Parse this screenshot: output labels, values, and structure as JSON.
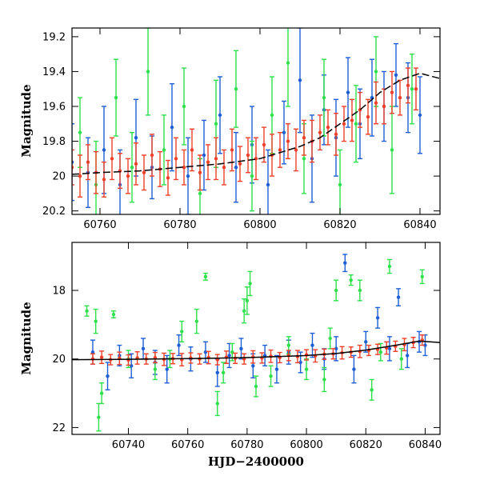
{
  "chart_data": [
    {
      "type": "scatter",
      "xlabel": "",
      "ylabel": "Magnitude",
      "xlim": [
        60753,
        60845
      ],
      "ylim": [
        20.22,
        19.15
      ],
      "y_inverted": true,
      "xticks": [
        60760,
        60780,
        60800,
        60820,
        60840
      ],
      "yticks": [
        19.2,
        19.4,
        19.6,
        19.8,
        20,
        20.2
      ],
      "grid": false,
      "legend": "none",
      "series": [
        {
          "color": "#1f5fd6",
          "x": [
            60753,
            60757,
            60761,
            60765,
            60769,
            60773,
            60778,
            60782,
            60786,
            60790,
            60794,
            60798,
            60802,
            60806,
            60810,
            60813,
            60816,
            60819,
            60822,
            60825,
            60828,
            60831,
            60834,
            60837,
            60840
          ],
          "y": [
            19.92,
            19.98,
            19.85,
            20.05,
            19.78,
            19.95,
            19.72,
            20.0,
            19.88,
            19.65,
            19.95,
            19.82,
            20.05,
            19.75,
            19.45,
            19.9,
            19.62,
            19.78,
            19.52,
            19.7,
            19.55,
            19.6,
            19.42,
            19.55,
            19.65
          ],
          "yerr": [
            0.22,
            0.2,
            0.25,
            0.2,
            0.22,
            0.18,
            0.25,
            0.22,
            0.2,
            0.22,
            0.2,
            0.22,
            0.2,
            0.18,
            0.3,
            0.25,
            0.2,
            0.22,
            0.2,
            0.2,
            0.22,
            0.2,
            0.18,
            0.2,
            0.22
          ]
        },
        {
          "color": "#2ee04a",
          "x": [
            60755,
            60759,
            60764,
            60768,
            60772,
            60776,
            60781,
            60785,
            60789,
            60794,
            60798,
            60803,
            60807,
            60811,
            60816,
            60820,
            60824,
            60829,
            60833,
            60838
          ],
          "y": [
            19.75,
            20.05,
            19.55,
            19.95,
            19.4,
            19.85,
            19.6,
            20.1,
            19.7,
            19.5,
            20.0,
            19.65,
            19.35,
            19.9,
            19.55,
            20.05,
            19.7,
            19.4,
            19.85,
            19.5
          ],
          "yerr": [
            0.2,
            0.25,
            0.22,
            0.2,
            0.25,
            0.2,
            0.22,
            0.2,
            0.25,
            0.22,
            0.2,
            0.22,
            0.25,
            0.2,
            0.22,
            0.2,
            0.22,
            0.2,
            0.25,
            0.2
          ]
        },
        {
          "color": "#f0402a",
          "x": [
            60753,
            60755,
            60757,
            60759,
            60761,
            60763,
            60765,
            60767,
            60769,
            60771,
            60773,
            60775,
            60777,
            60779,
            60781,
            60783,
            60785,
            60787,
            60789,
            60791,
            60793,
            60795,
            60797,
            60799,
            60801,
            60803,
            60805,
            60807,
            60809,
            60811,
            60813,
            60815,
            60817,
            60819,
            60821,
            60823,
            60825,
            60827,
            60829,
            60831,
            60833,
            60835,
            60837,
            60839
          ],
          "y": [
            19.95,
            20.0,
            19.92,
            19.98,
            20.02,
            19.9,
            19.97,
            20.0,
            19.93,
            19.98,
            19.88,
            19.96,
            20.01,
            19.9,
            19.95,
            19.85,
            19.98,
            19.92,
            19.9,
            19.95,
            19.85,
            19.93,
            19.88,
            19.9,
            19.82,
            19.88,
            19.85,
            19.8,
            19.85,
            19.78,
            19.8,
            19.75,
            19.72,
            19.76,
            19.7,
            19.68,
            19.62,
            19.66,
            19.58,
            19.6,
            19.52,
            19.55,
            19.48,
            19.5
          ],
          "yerr": [
            0.1,
            0.12,
            0.1,
            0.12,
            0.1,
            0.12,
            0.1,
            0.1,
            0.12,
            0.1,
            0.12,
            0.1,
            0.1,
            0.12,
            0.1,
            0.12,
            0.1,
            0.1,
            0.12,
            0.1,
            0.12,
            0.1,
            0.1,
            0.12,
            0.1,
            0.12,
            0.1,
            0.1,
            0.12,
            0.1,
            0.12,
            0.1,
            0.1,
            0.12,
            0.1,
            0.12,
            0.1,
            0.1,
            0.12,
            0.1,
            0.12,
            0.1,
            0.1,
            0.12
          ]
        }
      ],
      "model_curve": {
        "color": "#000000",
        "style": "dashed",
        "x": [
          60753,
          60760,
          60770,
          60780,
          60790,
          60800,
          60810,
          60815,
          60820,
          60825,
          60830,
          60835,
          60840,
          60845
        ],
        "y": [
          19.99,
          19.98,
          19.97,
          19.95,
          19.93,
          19.9,
          19.83,
          19.78,
          19.7,
          19.62,
          19.52,
          19.45,
          19.41,
          19.44
        ]
      }
    },
    {
      "type": "scatter",
      "xlabel": "HJD−2400000",
      "ylabel": "Magnitude",
      "xlim": [
        60721,
        60845
      ],
      "ylim": [
        22.2,
        16.6
      ],
      "y_inverted": true,
      "xticks": [
        60740,
        60760,
        60780,
        60800,
        60820,
        60840
      ],
      "yticks": [
        18,
        20,
        22
      ],
      "grid": false,
      "legend": "none",
      "series": [
        {
          "color": "#1f5fd6",
          "x": [
            60728,
            60733,
            60737,
            60741,
            60745,
            60749,
            60753,
            60757,
            60761,
            60766,
            60770,
            60774,
            60778,
            60782,
            60786,
            60790,
            60794,
            60798,
            60802,
            60806,
            60810,
            60813,
            60816,
            60820,
            60824,
            60828,
            60831,
            60834,
            60838,
            60840
          ],
          "y": [
            19.8,
            20.5,
            19.9,
            20.2,
            19.7,
            20.1,
            20.3,
            19.6,
            20.0,
            19.8,
            20.4,
            19.9,
            19.7,
            20.2,
            19.9,
            20.3,
            19.8,
            20.1,
            19.6,
            20.0,
            19.7,
            17.2,
            20.3,
            19.5,
            18.8,
            19.7,
            18.2,
            19.9,
            19.5,
            19.6
          ],
          "yerr": [
            0.35,
            0.4,
            0.3,
            0.35,
            0.3,
            0.35,
            0.4,
            0.3,
            0.35,
            0.3,
            0.4,
            0.35,
            0.3,
            0.35,
            0.3,
            0.4,
            0.35,
            0.3,
            0.35,
            0.3,
            0.35,
            0.25,
            0.4,
            0.3,
            0.3,
            0.35,
            0.25,
            0.35,
            0.3,
            0.3
          ]
        },
        {
          "color": "#2ee04a",
          "x": [
            60726,
            60729,
            60730,
            60731,
            60735,
            60740,
            60749,
            60754,
            60758,
            60763,
            60766,
            60770,
            60772,
            60775,
            60779,
            60780,
            60781,
            60783,
            60788,
            60794,
            60800,
            60806,
            60808,
            60810,
            60815,
            60818,
            60822,
            60825,
            60828,
            60832,
            60839
          ],
          "y": [
            18.6,
            18.9,
            21.7,
            21.0,
            18.7,
            20.0,
            20.3,
            20.0,
            19.2,
            18.9,
            17.6,
            21.3,
            20.4,
            19.8,
            18.6,
            18.3,
            17.8,
            20.8,
            20.5,
            19.6,
            20.3,
            20.6,
            19.4,
            18.0,
            17.7,
            18.0,
            20.9,
            19.8,
            17.3,
            20.0,
            17.6
          ],
          "yerr": [
            0.15,
            0.35,
            0.4,
            0.3,
            0.1,
            0.25,
            0.3,
            0.25,
            0.3,
            0.35,
            0.1,
            0.35,
            0.3,
            0.25,
            0.35,
            0.4,
            0.35,
            0.3,
            0.3,
            0.25,
            0.3,
            0.35,
            0.3,
            0.3,
            0.15,
            0.3,
            0.3,
            0.25,
            0.2,
            0.3,
            0.2
          ]
        },
        {
          "color": "#f0402a",
          "x": [
            60728,
            60731,
            60734,
            60737,
            60740,
            60743,
            60746,
            60749,
            60752,
            60755,
            60758,
            60761,
            60764,
            60767,
            60770,
            60773,
            60776,
            60779,
            60782,
            60785,
            60788,
            60791,
            60794,
            60797,
            60800,
            60803,
            60806,
            60809,
            60812,
            60815,
            60818,
            60821,
            60824,
            60827,
            60830,
            60833,
            60836,
            60839
          ],
          "y": [
            20.0,
            19.95,
            20.02,
            19.98,
            20.03,
            19.97,
            20.0,
            19.96,
            20.01,
            19.99,
            20.02,
            19.97,
            20.0,
            19.96,
            20.02,
            19.95,
            19.98,
            20.0,
            19.94,
            19.97,
            19.92,
            19.96,
            19.9,
            19.93,
            19.88,
            19.91,
            19.86,
            19.85,
            19.82,
            19.8,
            19.78,
            19.75,
            19.72,
            19.68,
            19.63,
            19.58,
            19.52,
            19.45
          ],
          "yerr": [
            0.15,
            0.18,
            0.15,
            0.18,
            0.15,
            0.18,
            0.15,
            0.15,
            0.18,
            0.15,
            0.18,
            0.15,
            0.15,
            0.18,
            0.15,
            0.18,
            0.15,
            0.15,
            0.18,
            0.15,
            0.18,
            0.15,
            0.15,
            0.18,
            0.15,
            0.18,
            0.15,
            0.15,
            0.18,
            0.15,
            0.18,
            0.15,
            0.15,
            0.18,
            0.15,
            0.18,
            0.15,
            0.15
          ]
        }
      ],
      "model_curve": {
        "color": "#000000",
        "style": "solid",
        "x": [
          60721,
          60740,
          60760,
          60780,
          60800,
          60810,
          60820,
          60830,
          60838,
          60845
        ],
        "y": [
          20.02,
          20.01,
          19.99,
          19.96,
          19.9,
          19.84,
          19.74,
          19.6,
          19.48,
          19.52
        ]
      }
    }
  ]
}
